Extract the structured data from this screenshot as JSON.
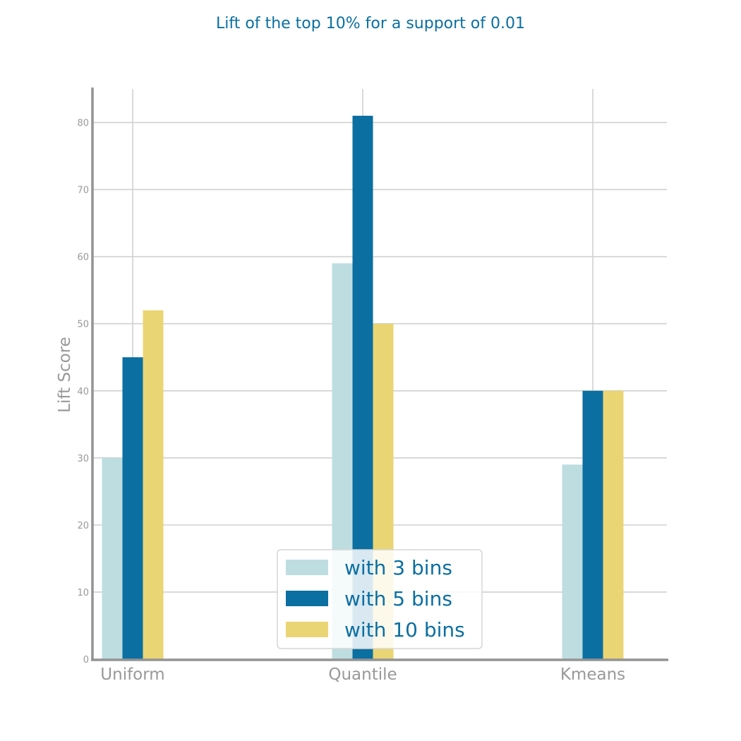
{
  "chart_data": {
    "type": "bar",
    "title": "Lift of the top 10% for a support of 0.01",
    "xlabel": "",
    "ylabel": "Lift Score",
    "categories": [
      "Uniform",
      "Quantile",
      "Kmeans"
    ],
    "series": [
      {
        "name": "with 3 bins",
        "values": [
          30,
          59,
          29
        ],
        "color": "#bedde1"
      },
      {
        "name": "with 5 bins",
        "values": [
          45,
          81,
          40
        ],
        "color": "#0b6fa1"
      },
      {
        "name": "with 10 bins",
        "values": [
          52,
          50,
          40
        ],
        "color": "#ead574"
      }
    ],
    "ylim": [
      0,
      85
    ],
    "yticks": [
      0,
      10,
      20,
      30,
      40,
      50,
      60,
      70,
      80
    ],
    "grid": true,
    "legend": "bottom-center"
  }
}
